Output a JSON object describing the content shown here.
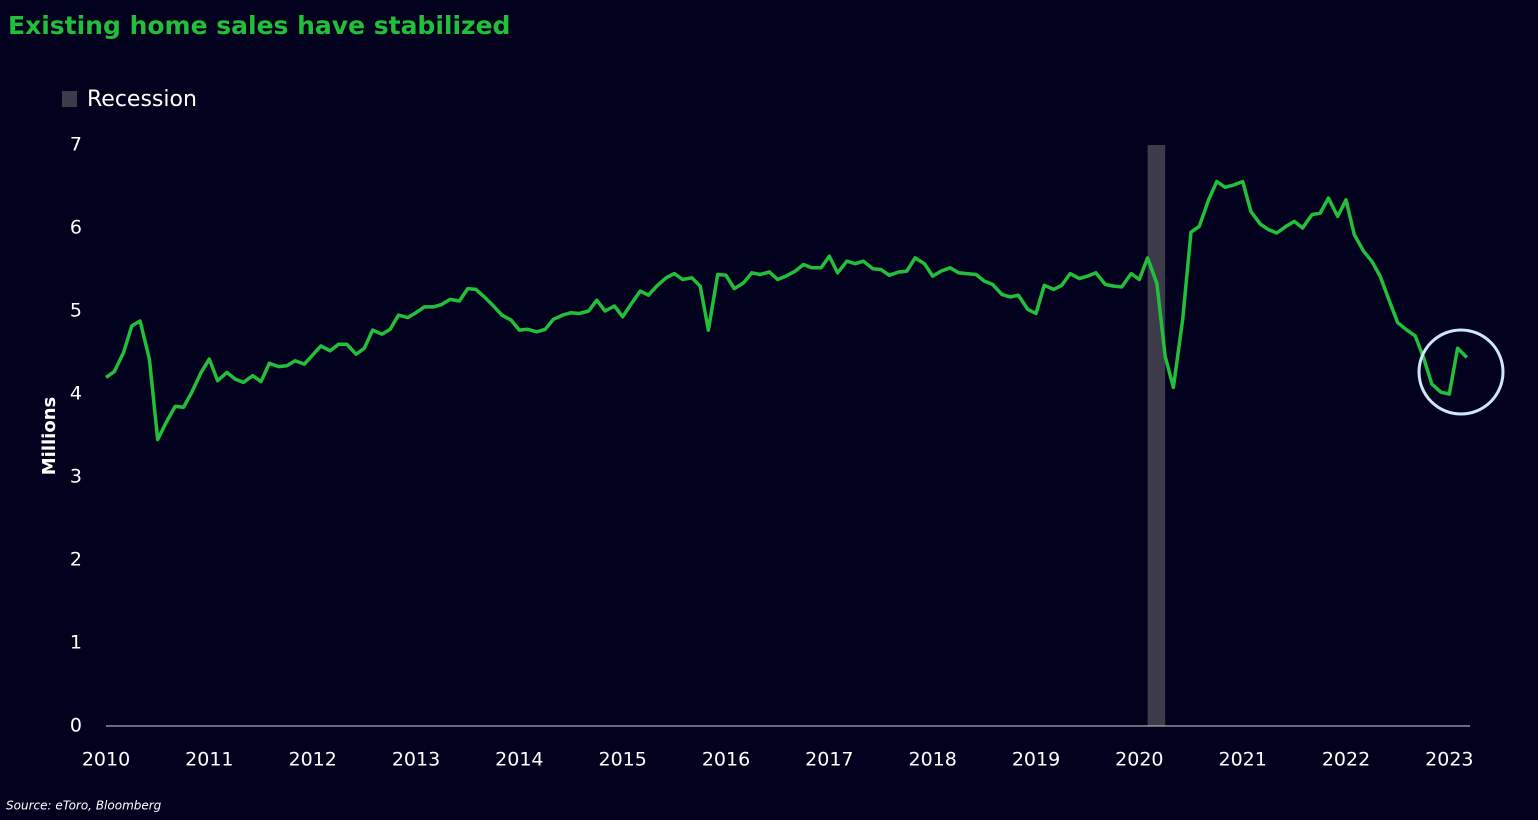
{
  "chart_data": {
    "type": "line",
    "title": "Existing home sales have stabilized",
    "y_label": "Millions",
    "source": "Source: eToro, Bloomberg",
    "color": "#22c03a",
    "recession": {
      "label": "Recession",
      "start": 2020.08,
      "end": 2020.25,
      "color": "#3d3b4a"
    },
    "xlim": [
      2010,
      2023.2
    ],
    "xticks": [
      2010,
      2011,
      2012,
      2013,
      2014,
      2015,
      2016,
      2017,
      2018,
      2019,
      2020,
      2021,
      2022,
      2023
    ],
    "ylim": [
      0,
      7
    ],
    "yticks": [
      0,
      1,
      2,
      3,
      4,
      5,
      6,
      7
    ],
    "x": [
      2010,
      2010.08,
      2010.17,
      2010.25,
      2010.33,
      2010.42,
      2010.5,
      2010.58,
      2010.67,
      2010.75,
      2010.83,
      2010.92,
      2011,
      2011.08,
      2011.17,
      2011.25,
      2011.33,
      2011.42,
      2011.5,
      2011.58,
      2011.67,
      2011.75,
      2011.83,
      2011.92,
      2012,
      2012.08,
      2012.17,
      2012.25,
      2012.33,
      2012.42,
      2012.5,
      2012.58,
      2012.67,
      2012.75,
      2012.83,
      2012.92,
      2013,
      2013.08,
      2013.17,
      2013.25,
      2013.33,
      2013.42,
      2013.5,
      2013.58,
      2013.67,
      2013.75,
      2013.83,
      2013.92,
      2014,
      2014.08,
      2014.17,
      2014.25,
      2014.33,
      2014.42,
      2014.5,
      2014.58,
      2014.67,
      2014.75,
      2014.83,
      2014.92,
      2015,
      2015.08,
      2015.17,
      2015.25,
      2015.33,
      2015.42,
      2015.5,
      2015.58,
      2015.67,
      2015.75,
      2015.83,
      2015.92,
      2016,
      2016.08,
      2016.17,
      2016.25,
      2016.33,
      2016.42,
      2016.5,
      2016.58,
      2016.67,
      2016.75,
      2016.83,
      2016.92,
      2017,
      2017.08,
      2017.17,
      2017.25,
      2017.33,
      2017.42,
      2017.5,
      2017.58,
      2017.67,
      2017.75,
      2017.83,
      2017.92,
      2018,
      2018.08,
      2018.17,
      2018.25,
      2018.33,
      2018.42,
      2018.5,
      2018.58,
      2018.67,
      2018.75,
      2018.83,
      2018.92,
      2019,
      2019.08,
      2019.17,
      2019.25,
      2019.33,
      2019.42,
      2019.5,
      2019.58,
      2019.67,
      2019.75,
      2019.83,
      2019.92,
      2020,
      2020.08,
      2020.17,
      2020.25,
      2020.33,
      2020.42,
      2020.5,
      2020.58,
      2020.67,
      2020.75,
      2020.83,
      2020.92,
      2021,
      2021.08,
      2021.17,
      2021.25,
      2021.33,
      2021.42,
      2021.5,
      2021.58,
      2021.67,
      2021.75,
      2021.83,
      2021.92,
      2022,
      2022.08,
      2022.17,
      2022.25,
      2022.33,
      2022.42,
      2022.5,
      2022.58,
      2022.67,
      2022.75,
      2022.83,
      2022.92,
      2023,
      2023.08,
      2023.17
    ],
    "values": [
      4.2,
      4.27,
      4.5,
      4.82,
      4.88,
      4.42,
      3.45,
      3.65,
      3.85,
      3.84,
      4.02,
      4.26,
      4.42,
      4.16,
      4.26,
      4.18,
      4.14,
      4.22,
      4.15,
      4.37,
      4.33,
      4.34,
      4.4,
      4.36,
      4.47,
      4.58,
      4.52,
      4.6,
      4.6,
      4.48,
      4.55,
      4.77,
      4.72,
      4.78,
      4.95,
      4.92,
      4.98,
      5.05,
      5.05,
      5.08,
      5.14,
      5.12,
      5.27,
      5.26,
      5.16,
      5.06,
      4.95,
      4.89,
      4.77,
      4.78,
      4.75,
      4.78,
      4.9,
      4.95,
      4.98,
      4.97,
      5.0,
      5.13,
      5.0,
      5.06,
      4.93,
      5.08,
      5.24,
      5.19,
      5.3,
      5.4,
      5.45,
      5.38,
      5.4,
      5.3,
      4.77,
      5.44,
      5.43,
      5.27,
      5.34,
      5.46,
      5.44,
      5.47,
      5.38,
      5.42,
      5.48,
      5.56,
      5.52,
      5.52,
      5.66,
      5.46,
      5.6,
      5.57,
      5.6,
      5.51,
      5.5,
      5.43,
      5.47,
      5.48,
      5.64,
      5.57,
      5.42,
      5.48,
      5.52,
      5.46,
      5.45,
      5.44,
      5.36,
      5.32,
      5.2,
      5.17,
      5.19,
      5.02,
      4.97,
      5.31,
      5.26,
      5.31,
      5.45,
      5.39,
      5.42,
      5.46,
      5.32,
      5.3,
      5.29,
      5.45,
      5.38,
      5.64,
      5.33,
      4.45,
      4.08,
      4.9,
      5.95,
      6.02,
      6.34,
      6.56,
      6.49,
      6.52,
      6.56,
      6.2,
      6.05,
      5.98,
      5.94,
      6.02,
      6.08,
      6.0,
      6.16,
      6.18,
      6.36,
      6.14,
      6.34,
      5.92,
      5.72,
      5.6,
      5.42,
      5.12,
      4.86,
      4.78,
      4.7,
      4.44,
      4.12,
      4.02,
      4.0,
      4.55,
      4.44
    ]
  }
}
